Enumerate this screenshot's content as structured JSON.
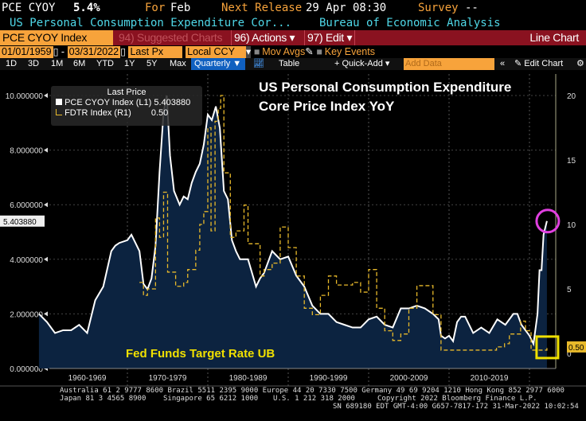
{
  "header": {
    "ticker": "PCE CYOY",
    "value": "5.4%",
    "for_label": "For",
    "for_value": "Feb",
    "next_label": "Next Release",
    "next_value": "29 Apr 08:30",
    "survey_label": "Survey",
    "survey_value": "--",
    "description": "US Personal Consumption Expenditure Cor...",
    "source": "Bureau of Economic Analysis"
  },
  "toolbar": {
    "security": "PCE CYOY Index",
    "suggested": "94) Suggested Charts",
    "actions": "96) Actions",
    "edit": "97) Edit",
    "chart_type": "Line Chart"
  },
  "settings": {
    "start_date": "01/01/1959",
    "end_date": "03/31/2022",
    "field": "Last Px",
    "currency": "Local CCY",
    "mov_avgs": "Mov Avgs",
    "key_events": "Key Events"
  },
  "tabs": {
    "periods": [
      "1D",
      "3D",
      "1M",
      "6M",
      "YTD",
      "1Y",
      "5Y",
      "Max"
    ],
    "frequency": "Quarterly",
    "table": "Table",
    "quick_add": "+ Quick-Add",
    "add_data_placeholder": "Add Data",
    "edit_chart": "Edit Chart"
  },
  "legend": {
    "title": "Last Price",
    "items": [
      {
        "name": "PCE CYOY Index",
        "axis": "(L1)",
        "value": "5.403880"
      },
      {
        "name": "FDTR Index",
        "axis": "(R1)",
        "value": "0.50"
      }
    ]
  },
  "annotations": {
    "title_line1": "US Personal Consumption Expenditure",
    "title_line2": "Core Price Index YoY",
    "fed_label": "Fed Funds Target Rate UB"
  },
  "colors": {
    "pce": "#ffffff",
    "fill": "#0c2340",
    "fdtr": "#e8b92a",
    "highlight_circle": "#e040e0",
    "highlight_box": "#f0e000"
  },
  "chart_data": {
    "type": "line",
    "x_labels": [
      "1960-1969",
      "1970-1979",
      "1980-1989",
      "1990-1999",
      "2000-2009",
      "2010-2019"
    ],
    "xlim": [
      1959,
      2022.25
    ],
    "left_axis": {
      "ticks": [
        "0.000000",
        "2.000000",
        "4.000000",
        "6.000000",
        "8.000000",
        "10.000000"
      ],
      "range": [
        0,
        10
      ],
      "last_label": "5.403880"
    },
    "right_axis": {
      "ticks": [
        "0",
        "5",
        "10",
        "15",
        "20"
      ],
      "range": [
        0,
        20
      ],
      "last_label": "0.50"
    },
    "series": [
      {
        "name": "PCE CYOY Index",
        "axis": "left",
        "x": [
          1959,
          1960,
          1961,
          1962,
          1963,
          1964,
          1965,
          1966,
          1967,
          1968,
          1968.5,
          1969,
          1970,
          1970.5,
          1971,
          1971.5,
          1972,
          1972.5,
          1973,
          1973.5,
          1974,
          1974.5,
          1974.9,
          1975.3,
          1975.8,
          1976.5,
          1977,
          1977.5,
          1978,
          1978.5,
          1979,
          1979.5,
          1980,
          1980.5,
          1981,
          1981.5,
          1982,
          1982.5,
          1983,
          1983.5,
          1984,
          1985,
          1986,
          1986.5,
          1987,
          1988,
          1989,
          1990,
          1991,
          1992,
          1993,
          1994,
          1995,
          1996,
          1997,
          1998,
          1999,
          2000,
          2001,
          2002,
          2003,
          2004,
          2005,
          2006,
          2007,
          2008,
          2008.7,
          2009,
          2009.5,
          2010,
          2010.5,
          2011,
          2011.5,
          2012,
          2013,
          2014,
          2015,
          2016,
          2017,
          2018,
          2018.5,
          2019,
          2020,
          2020.5,
          2021,
          2021.25,
          2021.5,
          2021.75,
          2022,
          2022.17
        ],
        "y": [
          2.0,
          1.7,
          1.3,
          1.4,
          1.4,
          1.6,
          1.3,
          2.5,
          3.0,
          4.3,
          4.5,
          4.6,
          4.7,
          4.9,
          4.6,
          4.3,
          3.1,
          2.9,
          3.3,
          4.5,
          7.2,
          9.4,
          10.0,
          7.8,
          6.5,
          6.0,
          6.3,
          6.2,
          6.8,
          7.2,
          7.5,
          8.2,
          9.3,
          9.1,
          9.6,
          8.8,
          6.5,
          6.2,
          4.7,
          4.3,
          4.0,
          4.0,
          3.0,
          3.3,
          3.5,
          4.3,
          4.0,
          4.1,
          3.4,
          3.0,
          2.3,
          2.0,
          2.0,
          1.7,
          1.6,
          1.5,
          1.5,
          1.8,
          1.9,
          1.6,
          1.5,
          2.2,
          2.2,
          2.3,
          2.2,
          2.0,
          1.8,
          1.2,
          1.1,
          1.2,
          1.0,
          1.7,
          1.9,
          1.9,
          1.3,
          1.5,
          1.3,
          1.8,
          1.6,
          2.0,
          2.0,
          1.6,
          1.2,
          0.9,
          2.0,
          3.6,
          3.6,
          4.9,
          5.2,
          5.4
        ]
      },
      {
        "name": "FDTR Index",
        "axis": "right",
        "x": [
          1971.5,
          1972,
          1972.5,
          1973.5,
          1974,
          1974.5,
          1975,
          1976,
          1977,
          1977.5,
          1978.5,
          1979,
          1979.5,
          1980,
          1980.4,
          1980.9,
          1981.3,
          1981.6,
          1982,
          1982.8,
          1983.5,
          1984.5,
          1985,
          1986.5,
          1987,
          1988,
          1989,
          1990,
          1991,
          1992,
          1993,
          1994,
          1995,
          1996,
          1998,
          1999,
          2000,
          2001,
          2002,
          2003,
          2004,
          2005,
          2006,
          2007.5,
          2008,
          2009,
          2015.9,
          2016.9,
          2017.5,
          2018.9,
          2019.5,
          2020.2,
          2022.17
        ],
        "y": [
          5.5,
          4.5,
          5.0,
          10.5,
          9.0,
          12.5,
          6.3,
          5.2,
          5.5,
          6.5,
          8.0,
          10.0,
          11.0,
          17.5,
          9.5,
          18.0,
          19.0,
          20.0,
          14.0,
          9.0,
          9.5,
          11.5,
          8.5,
          6.0,
          6.5,
          7.0,
          9.8,
          8.2,
          6.0,
          3.5,
          3.0,
          4.5,
          6.0,
          5.3,
          5.5,
          4.75,
          6.5,
          3.5,
          1.75,
          1.0,
          1.5,
          3.5,
          5.25,
          5.25,
          3.0,
          0.25,
          0.5,
          0.75,
          1.5,
          2.5,
          1.75,
          0.25,
          0.5
        ]
      }
    ]
  },
  "footer": {
    "line1": "Australia 61 2 9777 8600 Brazil 5511 2395 9000 Europe 44 20 7330 7500 Germany 49 69 9204 1210 Hong Kong 852 2977 6000",
    "line2a": "Japan 81 3 4565 8900",
    "line2b": "Singapore 65 6212 1000",
    "line2c": "U.S. 1 212 318 2000",
    "line2d": "Copyright 2022 Bloomberg Finance L.P.",
    "line3": "SN 689180 EDT  GMT-4:00 G657-7817-172 31-Mar-2022 10:02:54"
  }
}
